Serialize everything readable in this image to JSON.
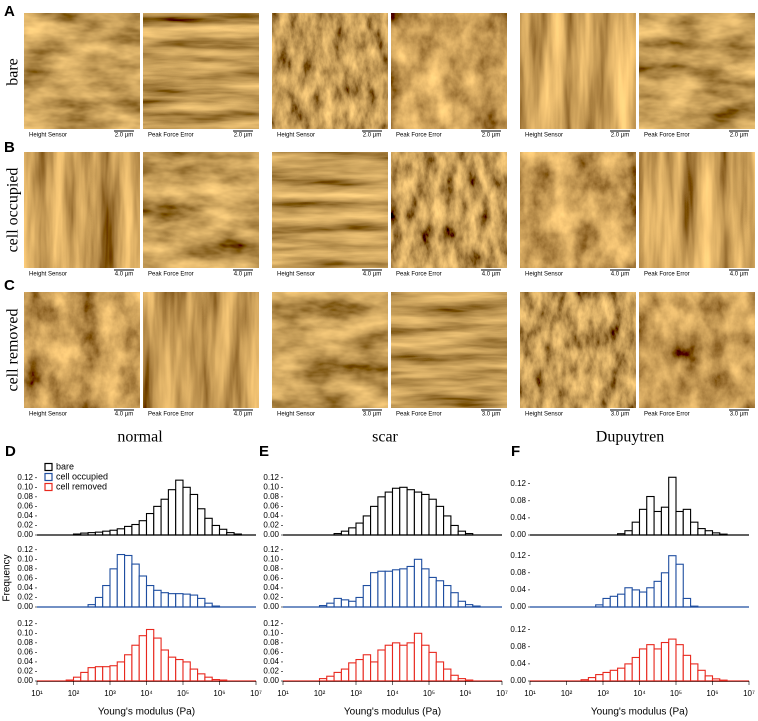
{
  "images": {
    "rows": [
      {
        "panel": "A",
        "label": "bare",
        "groups": [
          [
            {
              "caption": "Height Sensor",
              "scale": "2.0 µm"
            },
            {
              "caption": "Peak Force Error",
              "scale": "2.0 µm"
            }
          ],
          [
            {
              "caption": "Height Sensor",
              "scale": "2.0 µm"
            },
            {
              "caption": "Peak Force Error",
              "scale": "2.0 µm"
            }
          ],
          [
            {
              "caption": "Height Sensor",
              "scale": "2.0 µm"
            },
            {
              "caption": "Peak Force Error",
              "scale": "2.0 µm"
            }
          ]
        ]
      },
      {
        "panel": "B",
        "label": "cell occupied",
        "groups": [
          [
            {
              "caption": "Height Sensor",
              "scale": "4.0 µm"
            },
            {
              "caption": "Peak Force Error",
              "scale": "4.0 µm"
            }
          ],
          [
            {
              "caption": "Height Sensor",
              "scale": "4.0 µm"
            },
            {
              "caption": "Peak Force Error",
              "scale": "4.0 µm"
            }
          ],
          [
            {
              "caption": "Height Sensor",
              "scale": "4.0 µm"
            },
            {
              "caption": "Peak Force Error",
              "scale": "4.0 µm"
            }
          ]
        ]
      },
      {
        "panel": "C",
        "label": "cell removed",
        "groups": [
          [
            {
              "caption": "Height Sensor",
              "scale": "4.0 µm"
            },
            {
              "caption": "Peak Force Error",
              "scale": "4.0 µm"
            }
          ],
          [
            {
              "caption": "Height Sensor",
              "scale": "3.0 µm"
            },
            {
              "caption": "Peak Force Error",
              "scale": "3.0 µm"
            }
          ],
          [
            {
              "caption": "Height Sensor",
              "scale": "3.0 µm"
            },
            {
              "caption": "Peak Force Error",
              "scale": "3.0 µm"
            }
          ]
        ]
      }
    ]
  },
  "chart_data": [
    {
      "type": "histogram",
      "panel": "D",
      "title": "normal",
      "xlabel": "Young's modulus (Pa)",
      "ylabel": "Frequency",
      "xscale": "log",
      "legend": "upper left",
      "xlim": [
        10,
        10000000
      ],
      "xticks": [
        {
          "value": 10,
          "label": "10¹"
        },
        {
          "value": 100,
          "label": "10²"
        },
        {
          "value": 1000,
          "label": "10³"
        },
        {
          "value": 10000,
          "label": "10⁴"
        },
        {
          "value": 100000,
          "label": "10⁵"
        },
        {
          "value": 1000000,
          "label": "10⁶"
        },
        {
          "value": 10000000,
          "label": "10⁷"
        }
      ],
      "ylim": [
        0,
        0.13
      ],
      "yticks": [
        {
          "value": 0,
          "label": "0.00"
        },
        0.02,
        0.04,
        0.06,
        0.08,
        {
          "value": 0.1,
          "label": "0.10"
        },
        0.12
      ],
      "bins": [
        10,
        15.8,
        25.1,
        39.8,
        63.1,
        100,
        158,
        251,
        398,
        631,
        1000,
        1580,
        2510,
        3980,
        6310,
        10000,
        15800,
        25100,
        39800,
        63100,
        100000,
        158000,
        251000,
        398000,
        631000,
        1000000,
        1580000,
        2510000,
        3980000,
        6310000,
        10000000
      ],
      "series": [
        {
          "name": "bare",
          "color": "#000000",
          "values": [
            0,
            0,
            0,
            0,
            0,
            0.002,
            0.004,
            0.005,
            0.006,
            0.008,
            0.01,
            0.013,
            0.018,
            0.022,
            0.03,
            0.045,
            0.06,
            0.075,
            0.095,
            0.115,
            0.1,
            0.085,
            0.055,
            0.035,
            0.02,
            0.012,
            0.005,
            0.002,
            0,
            0
          ]
        },
        {
          "name": "cell  occupied",
          "color": "#1f4ea0",
          "values": [
            0,
            0,
            0,
            0,
            0,
            0,
            0,
            0.005,
            0.02,
            0.045,
            0.08,
            0.11,
            0.108,
            0.09,
            0.065,
            0.045,
            0.035,
            0.03,
            0.028,
            0.028,
            0.027,
            0.025,
            0.018,
            0.008,
            0.002,
            0,
            0,
            0,
            0,
            0
          ]
        },
        {
          "name": "cell  removed",
          "color": "#e8281e",
          "values": [
            0,
            0,
            0,
            0,
            0.002,
            0.008,
            0.018,
            0.028,
            0.03,
            0.03,
            0.032,
            0.04,
            0.055,
            0.075,
            0.095,
            0.108,
            0.09,
            0.065,
            0.05,
            0.045,
            0.04,
            0.025,
            0.015,
            0.008,
            0.003,
            0.002,
            0,
            0,
            0,
            0
          ]
        }
      ]
    },
    {
      "type": "histogram",
      "panel": "E",
      "title": "scar",
      "xlabel": "Young's modulus (Pa)",
      "xscale": "log",
      "xlim": [
        10,
        10000000
      ],
      "xticks": [
        {
          "value": 10,
          "label": "10¹"
        },
        {
          "value": 100,
          "label": "10²"
        },
        {
          "value": 1000,
          "label": "10³"
        },
        {
          "value": 10000,
          "label": "10⁴"
        },
        {
          "value": 100000,
          "label": "10⁵"
        },
        {
          "value": 1000000,
          "label": "10⁶"
        },
        {
          "value": 10000000,
          "label": "10⁷"
        }
      ],
      "ylim": [
        0,
        0.13
      ],
      "yticks": [
        {
          "value": 0,
          "label": "0.00"
        },
        0.02,
        0.04,
        0.06,
        0.08,
        {
          "value": 0.1,
          "label": "0.10"
        },
        0.12
      ],
      "bins": [
        10,
        15.8,
        25.1,
        39.8,
        63.1,
        100,
        158,
        251,
        398,
        631,
        1000,
        1580,
        2510,
        3980,
        6310,
        10000,
        15800,
        25100,
        39800,
        63100,
        100000,
        158000,
        251000,
        398000,
        631000,
        1000000,
        1580000,
        2510000,
        3980000,
        6310000,
        10000000
      ],
      "series": [
        {
          "color": "#000000",
          "values": [
            0,
            0,
            0,
            0,
            0,
            0,
            0,
            0.003,
            0.008,
            0.015,
            0.025,
            0.04,
            0.06,
            0.08,
            0.09,
            0.098,
            0.1,
            0.095,
            0.09,
            0.085,
            0.075,
            0.06,
            0.04,
            0.02,
            0.008,
            0.003,
            0,
            0,
            0,
            0
          ]
        },
        {
          "color": "#1f4ea0",
          "values": [
            0,
            0,
            0,
            0,
            0,
            0.003,
            0.008,
            0.018,
            0.015,
            0.012,
            0.02,
            0.045,
            0.072,
            0.075,
            0.075,
            0.078,
            0.08,
            0.085,
            0.1,
            0.08,
            0.062,
            0.055,
            0.045,
            0.03,
            0.012,
            0.005,
            0.002,
            0,
            0,
            0
          ]
        },
        {
          "color": "#e8281e",
          "values": [
            0,
            0,
            0,
            0,
            0,
            0.005,
            0.01,
            0.018,
            0.025,
            0.038,
            0.045,
            0.055,
            0.04,
            0.065,
            0.075,
            0.08,
            0.075,
            0.08,
            0.1,
            0.075,
            0.06,
            0.04,
            0.025,
            0.012,
            0.005,
            0.002,
            0,
            0,
            0,
            0
          ]
        }
      ]
    },
    {
      "type": "histogram",
      "panel": "F",
      "title": "Dupuytren",
      "xlabel": "Young's modulus (Pa)",
      "xscale": "log",
      "xlim": [
        10,
        10000000
      ],
      "xticks": [
        {
          "value": 10,
          "label": "10¹"
        },
        {
          "value": 100,
          "label": "10²"
        },
        {
          "value": 1000,
          "label": "10³"
        },
        {
          "value": 10000,
          "label": "10⁴"
        },
        {
          "value": 100000,
          "label": "10⁵"
        },
        {
          "value": 1000000,
          "label": "10⁶"
        },
        {
          "value": 10000000,
          "label": "10⁷"
        }
      ],
      "ylim": [
        0,
        0.145
      ],
      "yticks": [
        {
          "value": 0,
          "label": "0.00"
        },
        0.04,
        0.08,
        0.12
      ],
      "bins": [
        10,
        15.8,
        25.1,
        39.8,
        63.1,
        100,
        158,
        251,
        398,
        631,
        1000,
        1580,
        2510,
        3980,
        6310,
        10000,
        15800,
        25100,
        39800,
        63100,
        100000,
        158000,
        251000,
        398000,
        631000,
        1000000,
        1580000,
        2510000,
        3980000,
        6310000,
        10000000
      ],
      "series": [
        {
          "color": "#000000",
          "values": [
            0,
            0,
            0,
            0,
            0,
            0,
            0,
            0,
            0,
            0,
            0,
            0,
            0.003,
            0.01,
            0.03,
            0.06,
            0.09,
            0.055,
            0.065,
            0.135,
            0.055,
            0.06,
            0.03,
            0.015,
            0.01,
            0.005,
            0.002,
            0,
            0,
            0
          ]
        },
        {
          "color": "#1f4ea0",
          "values": [
            0,
            0,
            0,
            0,
            0,
            0,
            0,
            0,
            0,
            0.005,
            0.02,
            0.025,
            0.03,
            0.045,
            0.04,
            0.035,
            0.045,
            0.06,
            0.08,
            0.12,
            0.1,
            0.02,
            0.002,
            0,
            0,
            0,
            0,
            0,
            0,
            0
          ]
        },
        {
          "color": "#e8281e",
          "values": [
            0,
            0,
            0,
            0,
            0,
            0,
            0,
            0.003,
            0.008,
            0.015,
            0.02,
            0.025,
            0.03,
            0.04,
            0.055,
            0.075,
            0.085,
            0.075,
            0.09,
            0.098,
            0.085,
            0.06,
            0.04,
            0.025,
            0.012,
            0.005,
            0.002,
            0,
            0,
            0
          ]
        }
      ]
    }
  ]
}
